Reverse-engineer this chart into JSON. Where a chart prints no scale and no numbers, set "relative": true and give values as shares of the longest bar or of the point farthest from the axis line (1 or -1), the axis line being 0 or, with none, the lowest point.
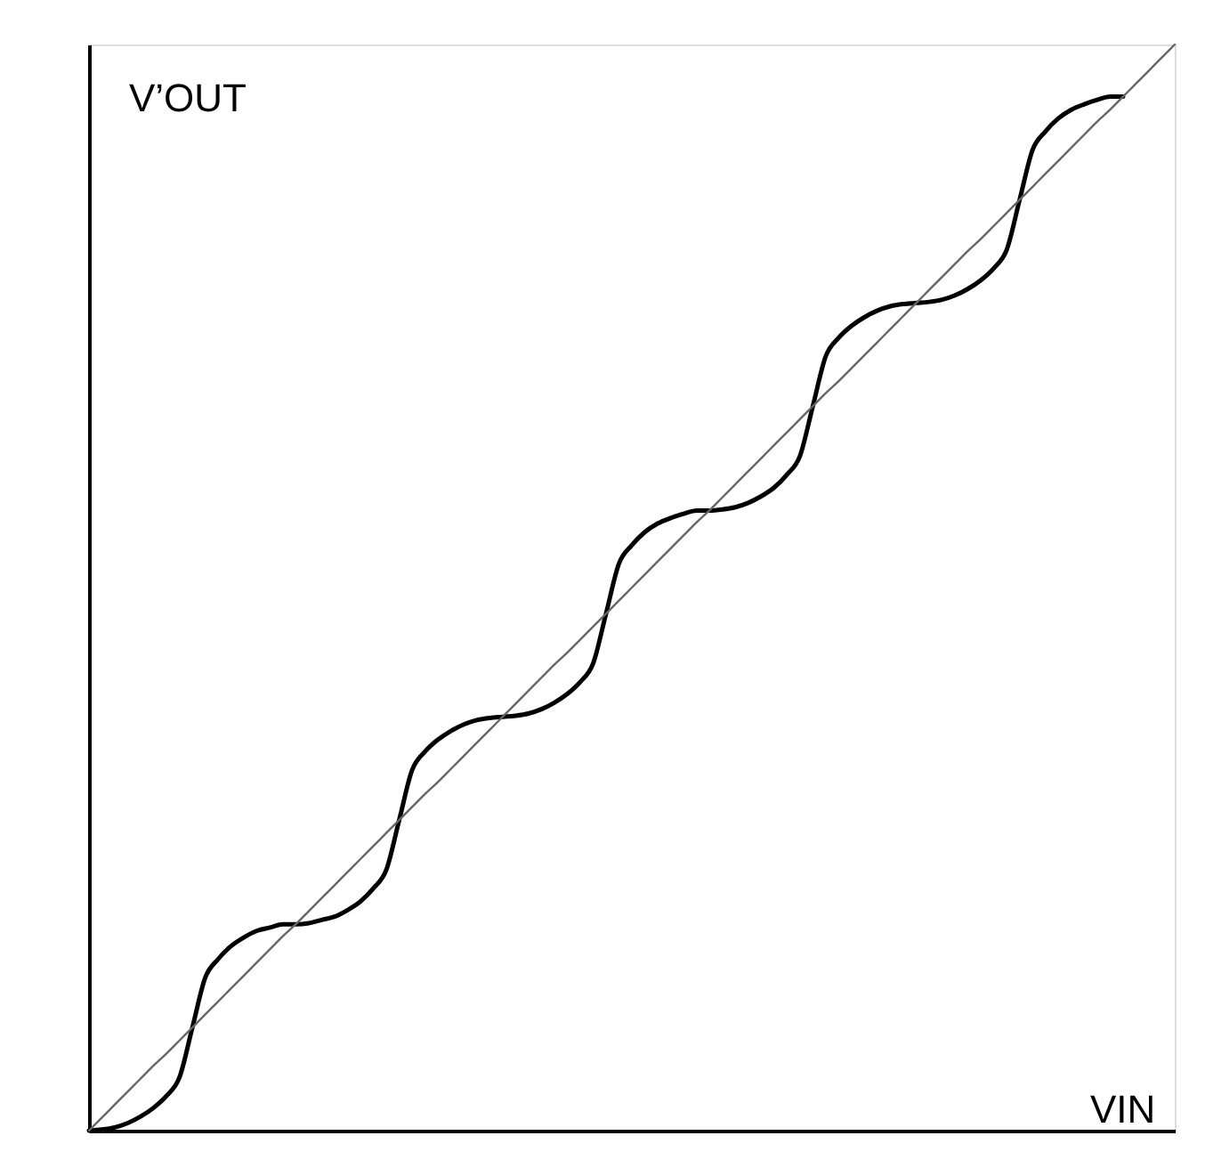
{
  "chart_data": {
    "type": "line",
    "relative": true,
    "xlabel": "VIN",
    "ylabel": "V’OUT",
    "categories": [
      null,
      null,
      null,
      null,
      null,
      null,
      null,
      null,
      null,
      null,
      null,
      null,
      null,
      null,
      null,
      null,
      null,
      null,
      null,
      null,
      null,
      null,
      null,
      null,
      null,
      null,
      null,
      null,
      null,
      null,
      null,
      null,
      null,
      null,
      null,
      null,
      null,
      null,
      null,
      null,
      null,
      null,
      null,
      null,
      null,
      null,
      null,
      null,
      null,
      null,
      null,
      null,
      null,
      null,
      null,
      null,
      null,
      null,
      null,
      null,
      null,
      null,
      null,
      null,
      null,
      null,
      null,
      null,
      null,
      null,
      null,
      null,
      null,
      null,
      null,
      null,
      null,
      null,
      null,
      null,
      null,
      null,
      null,
      null,
      null
    ],
    "series": [
      {
        "color": "#000000",
        "values": [
          0,
          0.001,
          0.003,
          0.007,
          0.013,
          0.021,
          0.032,
          0.049,
          0.095,
          0.141,
          0.158,
          0.17,
          0.178,
          0.184,
          0.187,
          0.19,
          0.19,
          0.191,
          0.194,
          0.197,
          0.203,
          0.211,
          0.223,
          0.24,
          0.286,
          0.332,
          0.349,
          0.36,
          0.368,
          0.374,
          0.378,
          0.38,
          0.381,
          0.382,
          0.384,
          0.388,
          0.394,
          0.402,
          0.413,
          0.43,
          0.476,
          0.522,
          0.539,
          0.551,
          0.559,
          0.564,
          0.568,
          0.571,
          0.571,
          0.572,
          0.574,
          0.578,
          0.584,
          0.592,
          0.604,
          0.621,
          0.667,
          0.713,
          0.73,
          0.741,
          0.749,
          0.755,
          0.759,
          0.761,
          0.762,
          0.763,
          0.765,
          0.769,
          0.775,
          0.783,
          0.794,
          0.811,
          0.857,
          0.903,
          0.92,
          0.932,
          0.94,
          0.945,
          0.949,
          0.952,
          0.952,
          null,
          null,
          null,
          null
        ]
      },
      {
        "color": "#666666",
        "values": [
          0,
          0.012,
          0.024,
          0.036,
          0.048,
          0.06,
          0.071,
          0.083,
          0.095,
          0.107,
          0.119,
          0.131,
          0.143,
          0.155,
          0.167,
          0.179,
          0.19,
          0.202,
          0.214,
          0.226,
          0.238,
          0.25,
          0.262,
          0.274,
          0.286,
          0.298,
          0.31,
          0.321,
          0.333,
          0.345,
          0.357,
          0.369,
          0.381,
          0.393,
          0.405,
          0.417,
          0.429,
          0.44,
          0.452,
          0.464,
          0.476,
          0.488,
          0.5,
          0.512,
          0.524,
          0.536,
          0.548,
          0.56,
          0.571,
          0.583,
          0.595,
          0.607,
          0.619,
          0.631,
          0.643,
          0.655,
          0.667,
          0.679,
          0.69,
          0.702,
          0.714,
          0.726,
          0.738,
          0.75,
          0.762,
          0.774,
          0.786,
          0.798,
          0.81,
          0.821,
          0.833,
          0.845,
          0.857,
          0.869,
          0.881,
          0.893,
          0.905,
          0.917,
          0.929,
          0.94,
          0.952,
          0.964,
          0.976,
          0.988,
          1
        ]
      }
    ]
  }
}
